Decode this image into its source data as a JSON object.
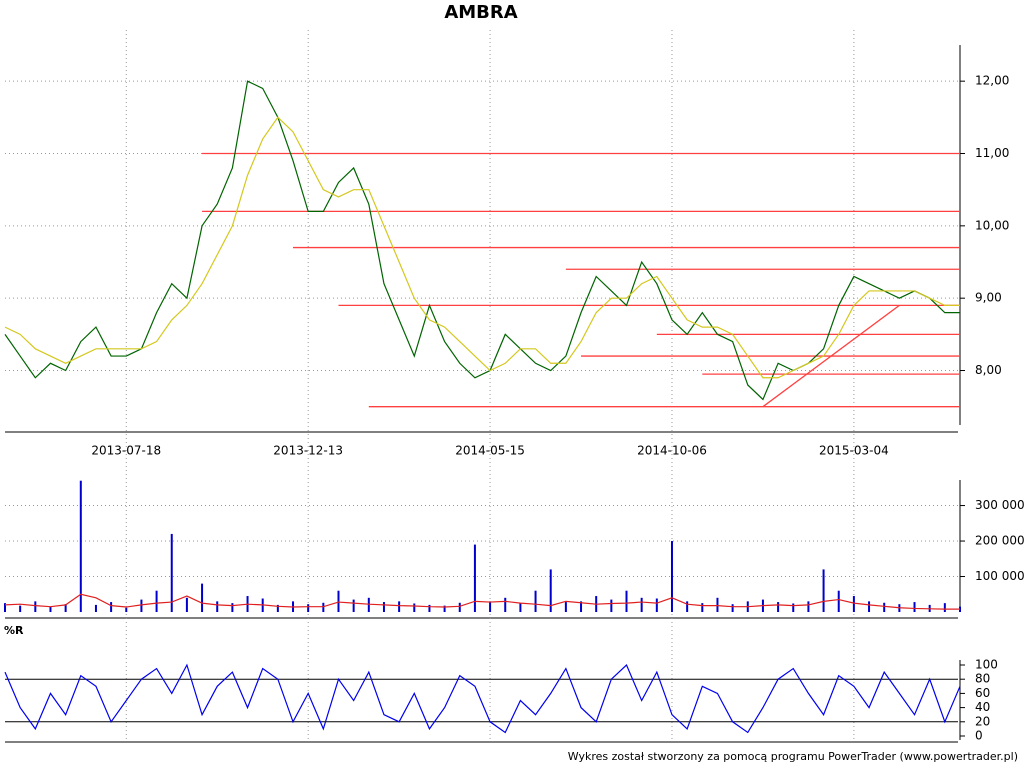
{
  "chart_data": [
    {
      "type": "line",
      "title": "AMBRA",
      "categories": [
        null,
        null,
        null,
        null,
        null,
        null,
        null,
        null,
        "2013-07-18",
        null,
        null,
        null,
        null,
        null,
        null,
        null,
        null,
        null,
        null,
        null,
        "2013-12-13",
        null,
        null,
        null,
        null,
        null,
        null,
        null,
        null,
        null,
        null,
        null,
        "2014-05-15",
        null,
        null,
        null,
        null,
        null,
        null,
        null,
        null,
        null,
        null,
        null,
        "2014-10-06",
        null,
        null,
        null,
        null,
        null,
        null,
        null,
        null,
        null,
        null,
        null,
        "2015-03-04",
        null,
        null,
        null,
        null,
        null,
        null,
        null
      ],
      "series": [
        {
          "color": "#006400",
          "values": [
            8.5,
            8.2,
            7.9,
            8.1,
            8.0,
            8.4,
            8.6,
            8.2,
            8.2,
            8.3,
            8.8,
            9.2,
            9.0,
            10.0,
            10.3,
            10.8,
            12.0,
            11.9,
            11.5,
            10.9,
            10.2,
            10.2,
            10.6,
            10.8,
            10.3,
            9.2,
            8.7,
            8.2,
            8.9,
            8.4,
            8.1,
            7.9,
            8.0,
            8.5,
            8.3,
            8.1,
            8.0,
            8.2,
            8.8,
            9.3,
            9.1,
            8.9,
            9.5,
            9.2,
            8.7,
            8.5,
            8.8,
            8.5,
            8.4,
            7.8,
            7.6,
            8.1,
            8.0,
            8.1,
            8.3,
            8.9,
            9.3,
            9.2,
            9.1,
            9.0,
            9.1,
            9.0,
            8.8,
            8.8
          ]
        },
        {
          "color": "#d4c81e",
          "values": [
            8.6,
            8.5,
            8.3,
            8.2,
            8.1,
            8.2,
            8.3,
            8.3,
            8.3,
            8.3,
            8.4,
            8.7,
            8.9,
            9.2,
            9.6,
            10.0,
            10.7,
            11.2,
            11.5,
            11.3,
            10.9,
            10.5,
            10.4,
            10.5,
            10.5,
            10.0,
            9.5,
            9.0,
            8.7,
            8.6,
            8.4,
            8.2,
            8.0,
            8.1,
            8.3,
            8.3,
            8.1,
            8.1,
            8.4,
            8.8,
            9.0,
            9.0,
            9.2,
            9.3,
            9.0,
            8.7,
            8.6,
            8.6,
            8.5,
            8.2,
            7.9,
            7.9,
            8.0,
            8.1,
            8.2,
            8.5,
            8.9,
            9.1,
            9.1,
            9.1,
            9.1,
            9.0,
            8.9,
            8.9
          ]
        }
      ],
      "lines": [
        {
          "color": "#ff4040",
          "x": [
            13,
            63
          ],
          "y": [
            11.0,
            11.0
          ]
        },
        {
          "color": "#ff4040",
          "x": [
            13,
            63
          ],
          "y": [
            10.2,
            10.2
          ]
        },
        {
          "color": "#ff4040",
          "x": [
            19,
            63
          ],
          "y": [
            9.7,
            9.7
          ]
        },
        {
          "color": "#ff4040",
          "x": [
            37,
            63
          ],
          "y": [
            9.4,
            9.4
          ]
        },
        {
          "color": "#ff4040",
          "x": [
            22,
            63
          ],
          "y": [
            8.9,
            8.9
          ]
        },
        {
          "color": "#ff4040",
          "x": [
            43,
            63
          ],
          "y": [
            8.5,
            8.5
          ]
        },
        {
          "color": "#ff4040",
          "x": [
            38,
            63
          ],
          "y": [
            8.2,
            8.2
          ]
        },
        {
          "color": "#ff4040",
          "x": [
            46,
            63
          ],
          "y": [
            7.95,
            7.95
          ]
        },
        {
          "color": "#ff4040",
          "x": [
            24,
            63
          ],
          "y": [
            7.5,
            7.5
          ]
        },
        {
          "color": "#ff4040",
          "x": [
            50,
            59
          ],
          "y": [
            7.5,
            8.9
          ]
        }
      ],
      "ylim": [
        7.15,
        12.5
      ],
      "yticks": [
        {
          "value": 8,
          "label": "8,00"
        },
        {
          "value": 9,
          "label": "9,00"
        },
        {
          "value": 10,
          "label": "10,00"
        },
        {
          "value": 11,
          "label": "11,00"
        },
        {
          "value": 12,
          "label": "12,00"
        }
      ]
    },
    {
      "type": "bar",
      "series": [
        {
          "type": "bar",
          "color": "#0000cc",
          "values": [
            25000,
            18000,
            30000,
            15000,
            22000,
            370000,
            20000,
            28000,
            12000,
            35000,
            60000,
            220000,
            40000,
            80000,
            30000,
            25000,
            45000,
            38000,
            20000,
            30000,
            22000,
            26000,
            60000,
            35000,
            40000,
            28000,
            30000,
            24000,
            20000,
            18000,
            26000,
            190000,
            30000,
            40000,
            25000,
            60000,
            120000,
            28000,
            30000,
            45000,
            35000,
            60000,
            40000,
            38000,
            200000,
            30000,
            25000,
            40000,
            22000,
            30000,
            35000,
            28000,
            24000,
            30000,
            120000,
            60000,
            45000,
            30000,
            26000,
            22000,
            28000,
            20000,
            25000,
            15000
          ]
        },
        {
          "type": "line",
          "color": "#e02020",
          "values": [
            20000,
            22000,
            18000,
            15000,
            20000,
            50000,
            40000,
            18000,
            14000,
            20000,
            25000,
            28000,
            45000,
            25000,
            20000,
            18000,
            22000,
            20000,
            16000,
            14000,
            15000,
            15000,
            28000,
            25000,
            22000,
            20000,
            18000,
            17000,
            15000,
            14000,
            16000,
            30000,
            28000,
            30000,
            25000,
            22000,
            18000,
            30000,
            26000,
            22000,
            24000,
            25000,
            28000,
            25000,
            40000,
            22000,
            18000,
            18000,
            15000,
            15000,
            18000,
            20000,
            18000,
            20000,
            30000,
            35000,
            25000,
            20000,
            16000,
            12000,
            10000,
            9000,
            8000,
            8000
          ]
        }
      ],
      "ylim": [
        0,
        372000
      ],
      "yticks": [
        {
          "value": 100000,
          "label": "100 000"
        },
        {
          "value": 200000,
          "label": "200 000"
        },
        {
          "value": 300000,
          "label": "300 000"
        }
      ]
    },
    {
      "type": "line",
      "title": "%R",
      "color": "#0000ee",
      "values": [
        90,
        40,
        10,
        60,
        30,
        85,
        70,
        20,
        50,
        80,
        95,
        60,
        100,
        30,
        70,
        90,
        40,
        95,
        80,
        20,
        60,
        10,
        80,
        50,
        90,
        30,
        20,
        60,
        10,
        40,
        85,
        70,
        20,
        5,
        50,
        30,
        60,
        95,
        40,
        20,
        80,
        100,
        50,
        90,
        30,
        10,
        70,
        60,
        20,
        5,
        40,
        80,
        95,
        60,
        30,
        85,
        70,
        40,
        90,
        60,
        30,
        80,
        20,
        70
      ],
      "levels": [
        20,
        80
      ],
      "ylim": [
        0,
        100
      ],
      "yticks": [
        0,
        20,
        40,
        60,
        80,
        100
      ]
    }
  ],
  "footer": "Wykres został stworzony za pomocą programu PowerTrader (www.powertrader.pl)"
}
